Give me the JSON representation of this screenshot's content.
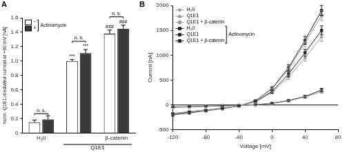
{
  "chart_data": [
    {
      "panel": "A",
      "type": "bar",
      "y_label": "norm. Q1E1-mediated current at +60 mV [nA]",
      "categories": [
        "H₂0",
        null,
        "β-catenin"
      ],
      "category_groups": [
        null,
        "Q1E1",
        "Q1E1"
      ],
      "series": [
        {
          "name": "−",
          "color": "#ffffff",
          "values": [
            0.15,
            1.0,
            1.38
          ],
          "errors": [
            0.03,
            0.02,
            0.05
          ],
          "marks": [
            null,
            "***",
            "###"
          ]
        },
        {
          "name": "+",
          "color": "#3a3a3a",
          "values": [
            0.19,
            1.11,
            1.45
          ],
          "errors": [
            0.05,
            0.05,
            0.05
          ],
          "marks": [
            null,
            "***",
            "###"
          ]
        }
      ],
      "pair_labels": [
        "n. s.",
        "n. s.",
        "n. s."
      ],
      "legend": "upper left",
      "legend_title": "Actinomycin",
      "ylim": [
        0,
        1.6
      ],
      "yticks": [
        0,
        0.2,
        0.4,
        0.6,
        0.8,
        {
          "value": 1,
          "label": "1.0"
        },
        1.2,
        1.4,
        1.6
      ],
      "grid": false
    },
    {
      "panel": "B",
      "type": "line",
      "x_label": "Voltage [mV]",
      "y_label": "Current [nA]",
      "x": [
        -120,
        -100,
        -80,
        -60,
        -40,
        -20,
        0,
        20,
        40,
        60
      ],
      "series": [
        {
          "name": "H₂0",
          "color": "#999999",
          "marker": "diamond",
          "values": [
            -50,
            -40,
            -30,
            -20,
            -10,
            0,
            30,
            80,
            160,
            270
          ],
          "errors": [
            10,
            8,
            6,
            5,
            4,
            3,
            8,
            15,
            25,
            35
          ]
        },
        {
          "name": "Q1E1",
          "color": "#999999",
          "marker": "triangle",
          "values": [
            -170,
            -130,
            -100,
            -60,
            -20,
            60,
            250,
            560,
            950,
            1370
          ],
          "errors": [
            20,
            15,
            12,
            10,
            8,
            10,
            30,
            50,
            70,
            90
          ]
        },
        {
          "name": "Q1E1 + β-catenin",
          "color": "#999999",
          "marker": "circle",
          "values": [
            -190,
            -150,
            -110,
            -70,
            -20,
            80,
            320,
            720,
            1250,
            1800
          ],
          "errors": [
            25,
            20,
            15,
            10,
            8,
            12,
            35,
            60,
            80,
            100
          ]
        },
        {
          "name": "H₂0",
          "color": "#222222",
          "marker": "square",
          "group": "Actinomycin",
          "values": [
            -40,
            -35,
            -25,
            -18,
            -8,
            5,
            35,
            90,
            170,
            300
          ],
          "errors": [
            10,
            8,
            6,
            5,
            4,
            3,
            8,
            15,
            25,
            35
          ]
        },
        {
          "name": "Q1E1",
          "color": "#222222",
          "marker": "square",
          "group": "Actinomycin",
          "values": [
            -180,
            -140,
            -105,
            -65,
            -20,
            70,
            270,
            620,
            1050,
            1500
          ],
          "errors": [
            20,
            15,
            12,
            10,
            8,
            10,
            30,
            50,
            70,
            90
          ]
        },
        {
          "name": "Q1E1 + β-catenin",
          "color": "#222222",
          "marker": "square",
          "group": "Actinomycin",
          "values": [
            -200,
            -160,
            -115,
            -75,
            -20,
            85,
            330,
            750,
            1300,
            1900
          ],
          "errors": [
            25,
            20,
            15,
            10,
            8,
            12,
            35,
            60,
            80,
            100
          ]
        }
      ],
      "legend": "upper left",
      "xlim": [
        -120,
        80
      ],
      "xticks": [
        -120,
        -80,
        -40,
        0,
        40,
        80
      ],
      "ylim": [
        -500,
        2000
      ],
      "yticks": [
        -500,
        0,
        500,
        1000,
        1500,
        2000
      ],
      "grid": false
    }
  ]
}
